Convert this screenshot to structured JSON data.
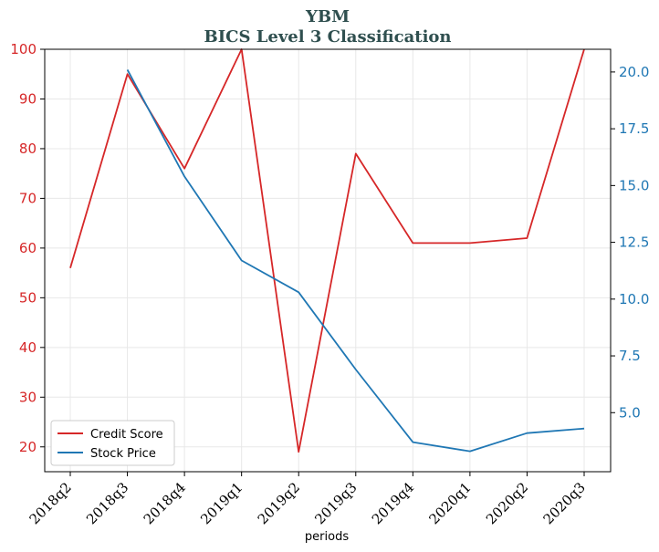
{
  "title": "YBM",
  "subtitle": "BICS Level 3 Classification",
  "colors": {
    "credit": "#d62728",
    "price": "#1f77b4",
    "title": "#2f4f4f",
    "grid": "#e8e8e8"
  },
  "chart_data": {
    "type": "line",
    "x": [
      "2018q2",
      "2018q3",
      "2018q4",
      "2019q1",
      "2019q2",
      "2019q3",
      "2019q4",
      "2020q1",
      "2020q2",
      "2020q3"
    ],
    "xlabel": "periods",
    "grid": true,
    "legend_position": "lower-left",
    "y_left": {
      "range": [
        15,
        100
      ],
      "ticks": [
        20,
        30,
        40,
        50,
        60,
        70,
        80,
        90,
        100
      ]
    },
    "y_right": {
      "range": [
        2.4,
        21.0
      ],
      "ticks": [
        "5.0",
        "7.5",
        "10.0",
        "12.5",
        "15.0",
        "17.5",
        "20.0"
      ]
    },
    "series": [
      {
        "name": "Credit Score",
        "axis": "left",
        "values": [
          56,
          95,
          76,
          100,
          19,
          79,
          61,
          61,
          62,
          100
        ]
      },
      {
        "name": "Stock Price",
        "axis": "right",
        "values": [
          null,
          20.1,
          15.4,
          11.7,
          10.3,
          6.9,
          3.7,
          3.3,
          4.1,
          4.3
        ]
      }
    ]
  }
}
